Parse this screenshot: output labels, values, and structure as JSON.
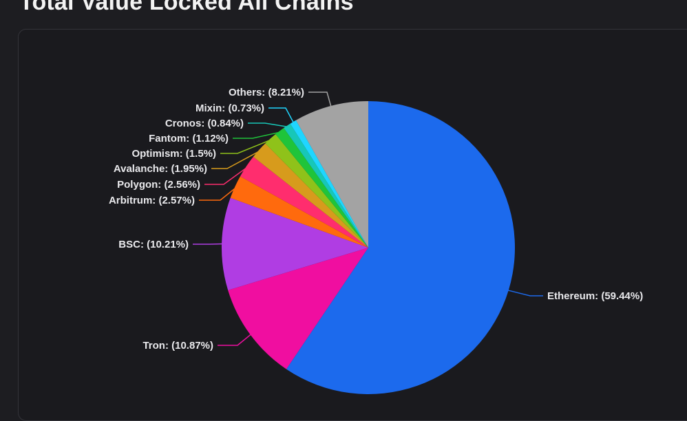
{
  "page": {
    "title": "Total Value Locked All Chains"
  },
  "chart_data": {
    "type": "pie",
    "slices": [
      {
        "name": "Ethereum",
        "label": "Ethereum: (59.44%)",
        "value": 59.44,
        "color": "#1c6aed"
      },
      {
        "name": "Tron",
        "label": "Tron: (10.87%)",
        "value": 10.87,
        "color": "#f00ea0"
      },
      {
        "name": "BSC",
        "label": "BSC: (10.21%)",
        "value": 10.21,
        "color": "#b03de3"
      },
      {
        "name": "Arbitrum",
        "label": "Arbitrum: (2.57%)",
        "value": 2.57,
        "color": "#ff6a0d"
      },
      {
        "name": "Polygon",
        "label": "Polygon: (2.56%)",
        "value": 2.56,
        "color": "#ff2d6e"
      },
      {
        "name": "Avalanche",
        "label": "Avalanche: (1.95%)",
        "value": 1.95,
        "color": "#d79b1c"
      },
      {
        "name": "Optimism",
        "label": "Optimism: (1.5%)",
        "value": 1.5,
        "color": "#8fc21a"
      },
      {
        "name": "Fantom",
        "label": "Fantom: (1.12%)",
        "value": 1.12,
        "color": "#1fc43a"
      },
      {
        "name": "Cronos",
        "label": "Cronos: (0.84%)",
        "value": 0.84,
        "color": "#17c7b8"
      },
      {
        "name": "Mixin",
        "label": "Mixin: (0.73%)",
        "value": 0.73,
        "color": "#1fd6ff"
      },
      {
        "name": "Others",
        "label": "Others: (8.21%)",
        "value": 8.21,
        "color": "#a3a3a3"
      }
    ],
    "start_angle_deg": 0,
    "direction": "clockwise"
  }
}
